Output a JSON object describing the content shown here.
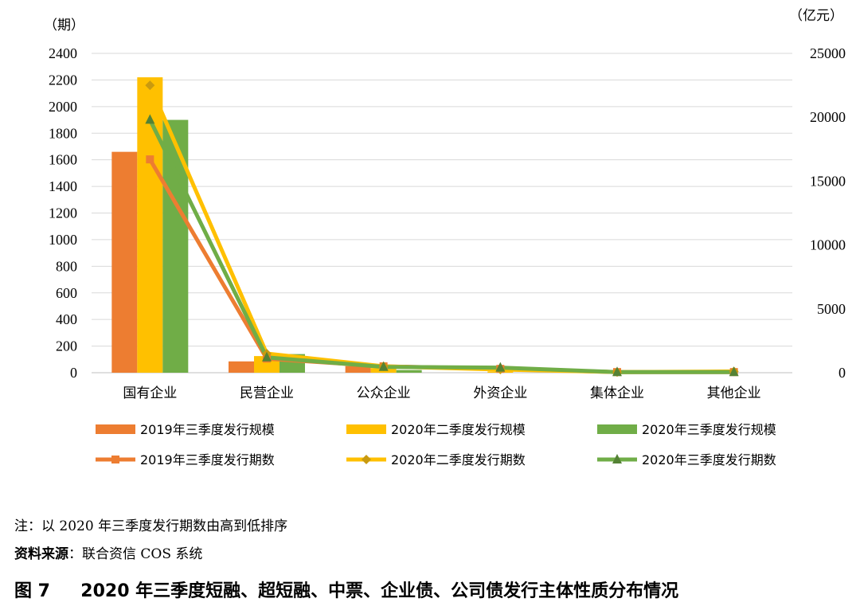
{
  "notes": {
    "note1": "注：以 2020 年三季度发行期数由高到低排序",
    "source_label": "资料来源",
    "source_text": "：联合资信 COS 系统"
  },
  "caption": {
    "fig_label": "图 7",
    "title": "2020 年三季度短融、超短融、中票、企业债、公司债发行主体性质分布情况"
  },
  "chart_data": {
    "type": "bar+line",
    "categories": [
      "国有企业",
      "民营企业",
      "公众企业",
      "外资企业",
      "集体企业",
      "其他企业"
    ],
    "left_axis": {
      "unit": "（期）",
      "ylim": [
        0,
        2400
      ],
      "ticks": [
        0,
        200,
        400,
        600,
        800,
        1000,
        1200,
        1400,
        1600,
        1800,
        2000,
        2200,
        2400
      ]
    },
    "right_axis": {
      "unit": "（亿元）",
      "ylim": [
        0,
        25000
      ],
      "ticks": [
        0,
        5000,
        10000,
        15000,
        20000,
        25000
      ]
    },
    "grid": true,
    "legend_position": "bottom",
    "bar_series": [
      {
        "name": "2019年三季度发行规模",
        "color": "#ED7D31",
        "values": [
          1660,
          85,
          50,
          0,
          0,
          0
        ]
      },
      {
        "name": "2020年二季度发行规模",
        "color": "#FFC000",
        "values": [
          2220,
          125,
          35,
          10,
          5,
          0
        ]
      },
      {
        "name": "2020年三季度发行规模",
        "color": "#70AD47",
        "values": [
          1900,
          140,
          20,
          0,
          0,
          0
        ]
      }
    ],
    "line_series": [
      {
        "name": "2019年三季度发行期数",
        "color": "#ED7D31",
        "marker": "square",
        "values": [
          16700,
          1100,
          500,
          300,
          50,
          50
        ]
      },
      {
        "name": "2020年二季度发行期数",
        "color": "#FFC000",
        "marker": "diamond",
        "values": [
          22500,
          1500,
          500,
          250,
          50,
          100
        ]
      },
      {
        "name": "2020年三季度发行期数",
        "color": "#70AD47",
        "marker": "triangle",
        "values": [
          19800,
          1200,
          450,
          400,
          50,
          50
        ]
      }
    ]
  }
}
